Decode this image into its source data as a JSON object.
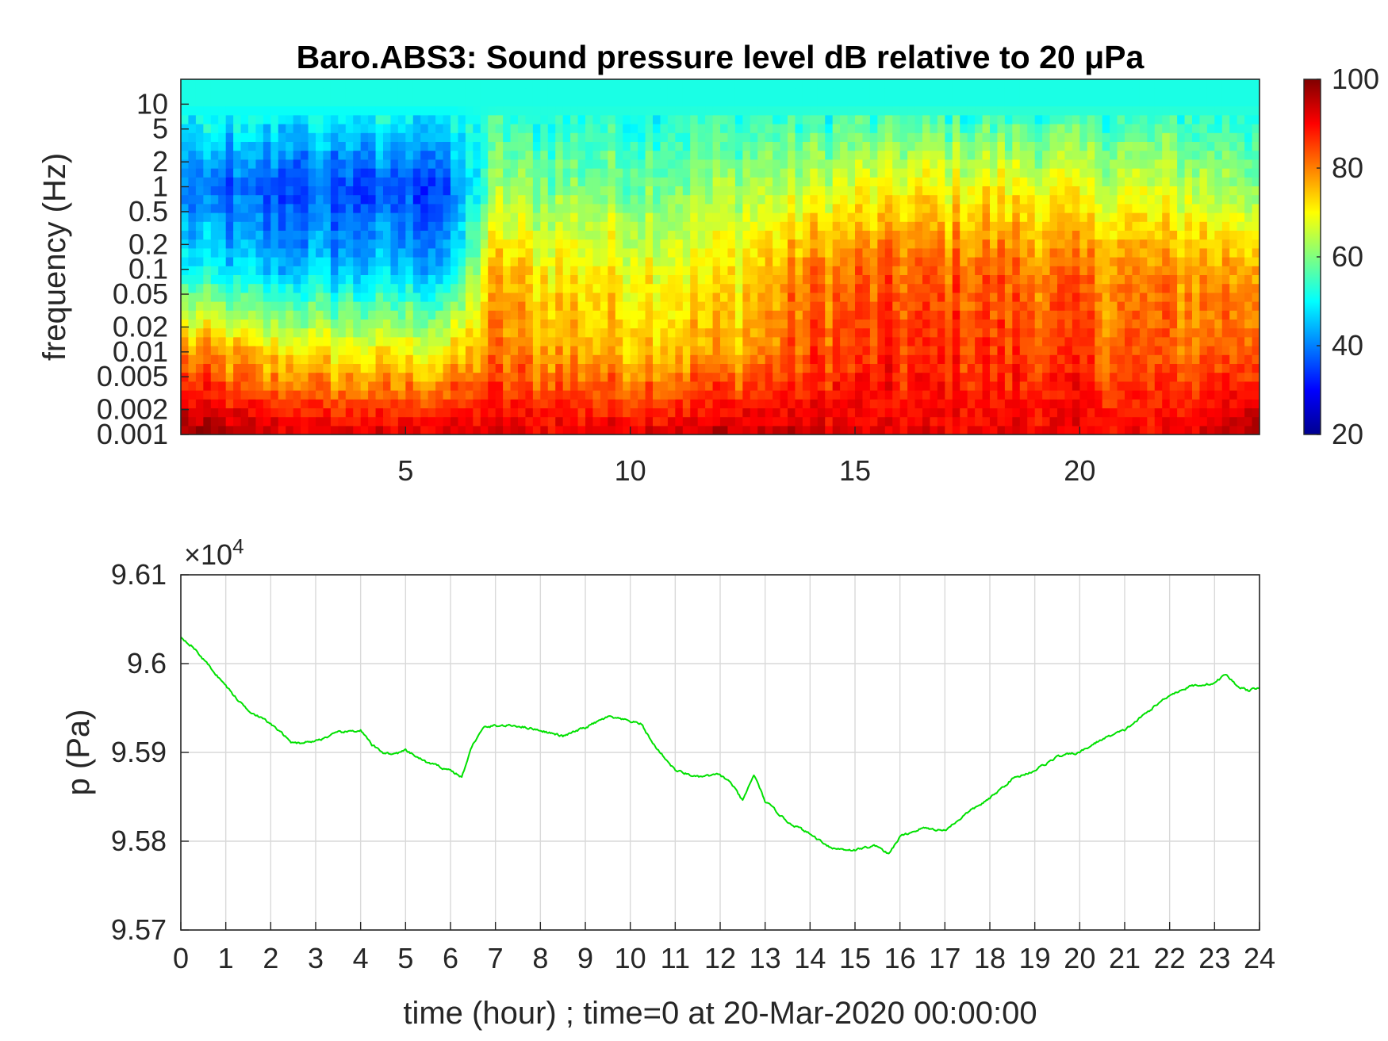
{
  "chart_data": [
    {
      "type": "heatmap",
      "title": "Baro.ABS3: Sound pressure level dB relative to 20 μPa",
      "ylabel": "frequency (Hz)",
      "y_scale": "log",
      "y_ticks": [
        "0.001",
        "0.002",
        "0.005",
        "0.01",
        "0.02",
        "0.05",
        "0.1",
        "0.2",
        "0.5",
        "1",
        "2",
        "5",
        "10"
      ],
      "x_ticks": [
        "5",
        "10",
        "15",
        "20"
      ],
      "xlim": [
        0,
        24
      ],
      "ylim": [
        0.001,
        20
      ],
      "colorbar": {
        "range": [
          20,
          100
        ],
        "ticks": [
          "20",
          "40",
          "60",
          "80",
          "100"
        ],
        "colormap": "jet"
      },
      "approx_levels_db": {
        "hour": [
          0,
          2,
          4,
          6,
          7,
          8,
          10,
          12,
          14,
          16,
          18,
          20,
          22,
          24
        ],
        "at_0.001Hz": [
          98,
          94,
          93,
          92,
          93,
          92,
          92,
          95,
          93,
          91,
          91,
          91,
          90,
          98
        ],
        "at_0.01Hz": [
          80,
          72,
          70,
          71,
          80,
          78,
          76,
          76,
          84,
          86,
          86,
          84,
          82,
          84
        ],
        "at_0.1Hz": [
          50,
          45,
          45,
          45,
          76,
          72,
          70,
          70,
          80,
          82,
          82,
          80,
          78,
          78
        ],
        "at_1Hz": [
          38,
          35,
          35,
          35,
          62,
          60,
          60,
          62,
          66,
          70,
          70,
          68,
          66,
          62
        ],
        "at_10Hz": [
          52,
          52,
          52,
          52,
          52,
          52,
          52,
          52,
          52,
          52,
          52,
          52,
          52,
          52
        ]
      }
    },
    {
      "type": "line",
      "xlabel": "time (hour) ; time=0 at 20-Mar-2020 00:00:00",
      "ylabel": "p (Pa)",
      "exponent_label": "×10",
      "exponent_power": "4",
      "xlim": [
        0,
        24
      ],
      "ylim": [
        95700,
        96100
      ],
      "x_ticks": [
        "0",
        "1",
        "2",
        "3",
        "4",
        "5",
        "6",
        "7",
        "8",
        "9",
        "10",
        "11",
        "12",
        "13",
        "14",
        "15",
        "16",
        "17",
        "18",
        "19",
        "20",
        "21",
        "22",
        "23",
        "24"
      ],
      "y_ticks": [
        "9.57",
        "9.58",
        "9.59",
        "9.6",
        "9.61"
      ],
      "grid": true,
      "line_color": "#00e000",
      "series": [
        {
          "x": [
            0,
            0.25,
            0.5,
            0.75,
            1,
            1.25,
            1.5,
            2,
            2.5,
            3,
            3.5,
            4,
            4.25,
            4.5,
            4.75,
            5,
            5.25,
            5.5,
            6,
            6.25,
            6.5,
            6.75,
            7,
            7.5,
            8,
            8.5,
            9,
            9.5,
            10,
            10.25,
            10.5,
            10.75,
            11,
            11.5,
            12,
            12.25,
            12.5,
            12.75,
            13,
            13.5,
            14,
            14.5,
            15,
            15.25,
            15.5,
            15.75,
            16,
            16.5,
            17,
            17.5,
            18,
            18.5,
            19,
            19.5,
            20,
            20.5,
            21,
            21.5,
            22,
            22.5,
            23,
            23.25,
            23.5,
            23.75,
            24
          ],
          "y": [
            96030,
            96020,
            96005,
            95990,
            95975,
            95960,
            95948,
            95932,
            95910,
            95913,
            95922,
            95925,
            95908,
            95900,
            95898,
            95902,
            95895,
            95888,
            95880,
            95872,
            95910,
            95928,
            95930,
            95930,
            95925,
            95918,
            95928,
            95940,
            95935,
            95932,
            95910,
            95895,
            95880,
            95872,
            95875,
            95865,
            95845,
            95875,
            95845,
            95822,
            95808,
            95792,
            95790,
            95793,
            95795,
            95785,
            95805,
            95815,
            95812,
            95832,
            95848,
            95870,
            95880,
            95895,
            95900,
            95915,
            95925,
            95945,
            95965,
            95975,
            95978,
            95988,
            95975,
            95970,
            95972
          ]
        }
      ]
    }
  ]
}
